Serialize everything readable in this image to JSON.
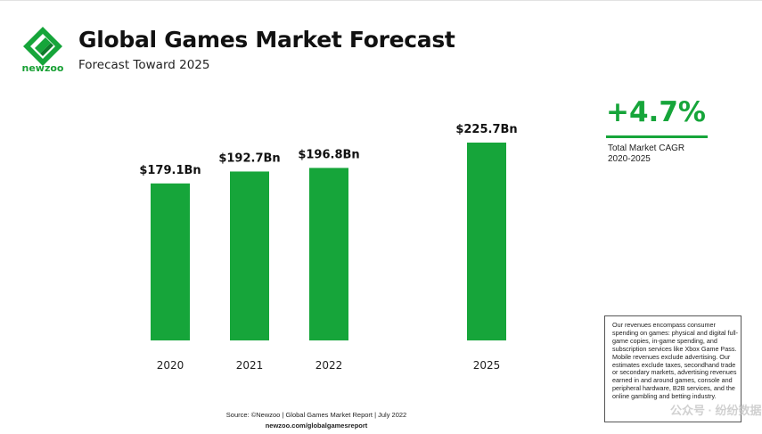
{
  "brand": {
    "name": "newzoo",
    "color": "#16a53a"
  },
  "header": {
    "title": "Global Games Market Forecast",
    "subtitle": "Forecast Toward 2025"
  },
  "cagr": {
    "value": "+4.7%",
    "label_line1": "Total Market CAGR",
    "label_line2": "2020-2025"
  },
  "note": "Our revenues encompass consumer spending on games: physical and digital full-game copies, in-game spending, and subscription services like Xbox Game Pass. Mobile revenues exclude advertising. Our estimates exclude taxes, secondhand trade or secondary markets, advertising revenues earned in and around games, console and peripheral hardware, B2B services, and the online gambling and betting industry.",
  "footer": {
    "source": "Source: ©Newzoo | Global Games Market Report | July 2022",
    "url": "newzoo.com/globalgamesreport"
  },
  "watermark": "公众号 · 纷纷数据",
  "chart_data": {
    "type": "bar",
    "title": "Global Games Market Forecast",
    "subtitle": "Forecast Toward 2025",
    "categories": [
      "2020",
      "2021",
      "2022",
      "2025"
    ],
    "values": [
      179.1,
      192.7,
      196.8,
      225.7
    ],
    "value_labels": [
      "$179.1Bn",
      "$192.7Bn",
      "$196.8Bn",
      "$225.7Bn"
    ],
    "unit": "Bn USD",
    "xlabel": "",
    "ylabel": "",
    "ylim": [
      0,
      225.7
    ],
    "grid": false,
    "legend": "none",
    "bar_color": "#16a53a"
  }
}
